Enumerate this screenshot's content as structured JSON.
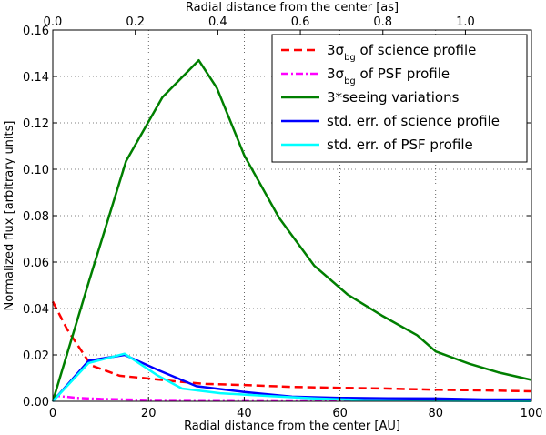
{
  "chart_data": {
    "type": "line",
    "xlabel": "Radial distance from the center [AU]",
    "ylabel": "Normalized flux [arbitrary units]",
    "top_xlabel": "Radial distance from the center [as]",
    "xlim": [
      0,
      100
    ],
    "ylim": [
      0,
      0.16
    ],
    "top_xlim": [
      0,
      1.16
    ],
    "x_ticks": [
      0,
      20,
      40,
      60,
      80,
      100
    ],
    "x_tick_labels": [
      "0",
      "20",
      "40",
      "60",
      "80",
      "100"
    ],
    "y_ticks": [
      0,
      0.02,
      0.04,
      0.06,
      0.08,
      0.1,
      0.12,
      0.14,
      0.16
    ],
    "y_tick_labels": [
      "0.00",
      "0.02",
      "0.04",
      "0.06",
      "0.08",
      "0.10",
      "0.12",
      "0.14",
      "0.16"
    ],
    "top_ticks": [
      0,
      0.2,
      0.4,
      0.6,
      0.8,
      1.0
    ],
    "top_tick_labels": [
      "0.0",
      "0.2",
      "0.4",
      "0.6",
      "0.8",
      "1.0"
    ],
    "grid": true,
    "legend_position": "top-right",
    "series": [
      {
        "name": "3σbg of science profile",
        "legend_prefix": "3σ",
        "legend_sub": "bg",
        "legend_suffix": " of science profile",
        "color": "#ff0000",
        "style": "dashed",
        "x": [
          0,
          3,
          8,
          14,
          20,
          26,
          32,
          40,
          50,
          60,
          70,
          80,
          90,
          100
        ],
        "y": [
          0.043,
          0.031,
          0.0155,
          0.011,
          0.0098,
          0.0085,
          0.0075,
          0.007,
          0.0062,
          0.0058,
          0.0055,
          0.005,
          0.0047,
          0.0043
        ]
      },
      {
        "name": "3σbg of PSF profile",
        "legend_prefix": "3σ",
        "legend_sub": "bg",
        "legend_suffix": " of PSF profile",
        "color": "#ff00ff",
        "style": "dashdot",
        "x": [
          0,
          5,
          10,
          20,
          30,
          50,
          70,
          100
        ],
        "y": [
          0.0025,
          0.0015,
          0.001,
          0.0006,
          0.0005,
          0.0004,
          0.0003,
          0.0003
        ]
      },
      {
        "name": "3*seeing variations",
        "legend_prefix": "3*seeing variations",
        "legend_sub": "",
        "legend_suffix": "",
        "color": "#007f00",
        "style": "solid",
        "x": [
          0,
          7.6,
          15.3,
          22.9,
          30.5,
          34.3,
          40,
          47.3,
          54.6,
          61.6,
          68.7,
          76.1,
          80,
          87,
          93,
          100
        ],
        "y": [
          0,
          0.052,
          0.1035,
          0.131,
          0.147,
          0.135,
          0.106,
          0.079,
          0.0585,
          0.046,
          0.037,
          0.0285,
          0.0215,
          0.0162,
          0.0125,
          0.0092
        ]
      },
      {
        "name": "std. err. of science profile",
        "legend_prefix": "std. err. of science profile",
        "legend_sub": "",
        "legend_suffix": "",
        "color": "#0000ff",
        "style": "solid",
        "x": [
          0,
          7.5,
          15,
          22,
          30,
          40,
          50,
          60,
          70,
          80,
          90,
          100
        ],
        "y": [
          0,
          0.0175,
          0.02,
          0.0135,
          0.0065,
          0.004,
          0.002,
          0.0015,
          0.0013,
          0.0012,
          0.0008,
          0.0008
        ]
      },
      {
        "name": "std. err. of PSF profile",
        "legend_prefix": "std. err. of PSF profile",
        "legend_sub": "",
        "legend_suffix": "",
        "color": "#00ffff",
        "style": "solid",
        "x": [
          0,
          7.5,
          15,
          22,
          27,
          35,
          45,
          55,
          65,
          75,
          85,
          100
        ],
        "y": [
          0,
          0.0165,
          0.0205,
          0.011,
          0.0055,
          0.0035,
          0.0023,
          0.0012,
          0.0005,
          0.0003,
          0.0002,
          0.0001
        ]
      }
    ]
  }
}
